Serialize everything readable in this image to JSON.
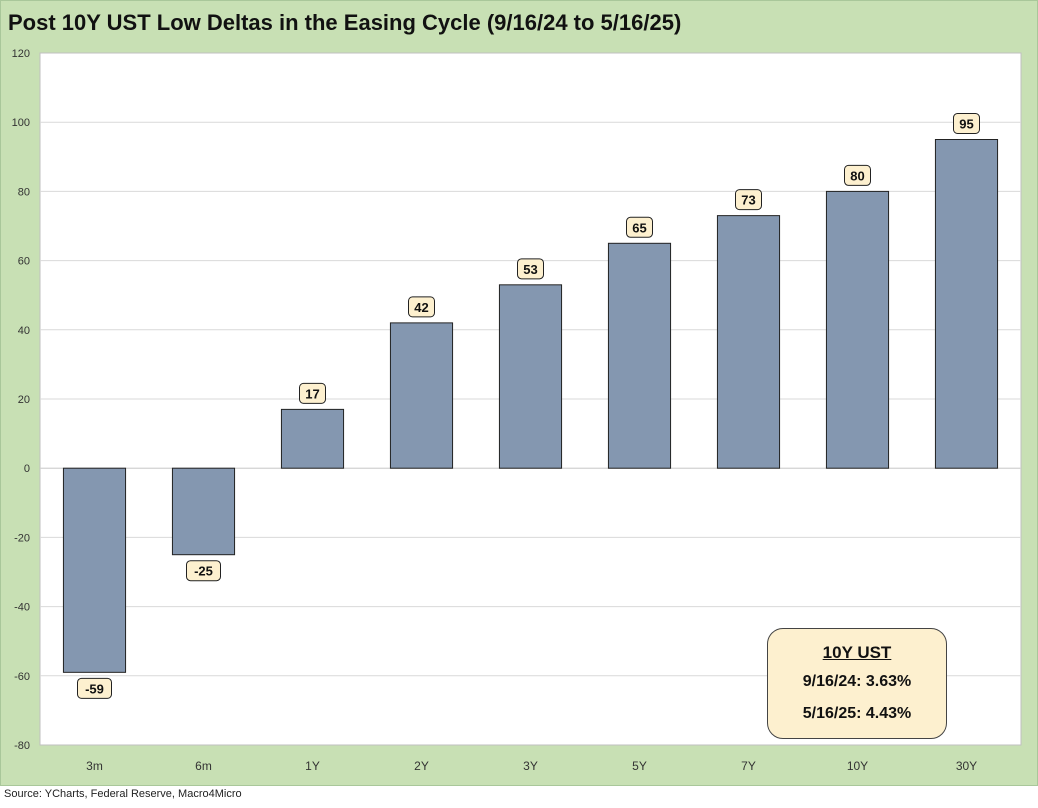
{
  "title": "Post 10Y UST Low Deltas in the Easing Cycle (9/16/24 to 5/16/25)",
  "source": "Source: YCharts, Federal Reserve, Macro4Micro",
  "annotation": {
    "title": "10Y UST",
    "lines": [
      "9/16/24:  3.63%",
      "5/16/25:  4.43%"
    ]
  },
  "colors": {
    "background": "#c8e0b4",
    "plot_area": "#ffffff",
    "bar_fill": "#8497b0",
    "label_fill": "#fdf0cf",
    "gridline": "#d9d9d9"
  },
  "chart_data": {
    "type": "bar",
    "categories": [
      "3m",
      "6m",
      "1Y",
      "2Y",
      "3Y",
      "5Y",
      "7Y",
      "10Y",
      "30Y"
    ],
    "values": [
      -59,
      -25,
      17,
      42,
      53,
      65,
      73,
      80,
      95
    ],
    "data_labels": [
      "-59",
      "-25",
      "17",
      "42",
      "53",
      "65",
      "73",
      "80",
      "95"
    ],
    "xlabel": "",
    "ylabel": "",
    "ylim": [
      -80,
      120
    ],
    "yticks": [
      -80,
      -60,
      -40,
      -20,
      0,
      20,
      40,
      60,
      80,
      100,
      120
    ],
    "grid": true,
    "legend": "none"
  }
}
